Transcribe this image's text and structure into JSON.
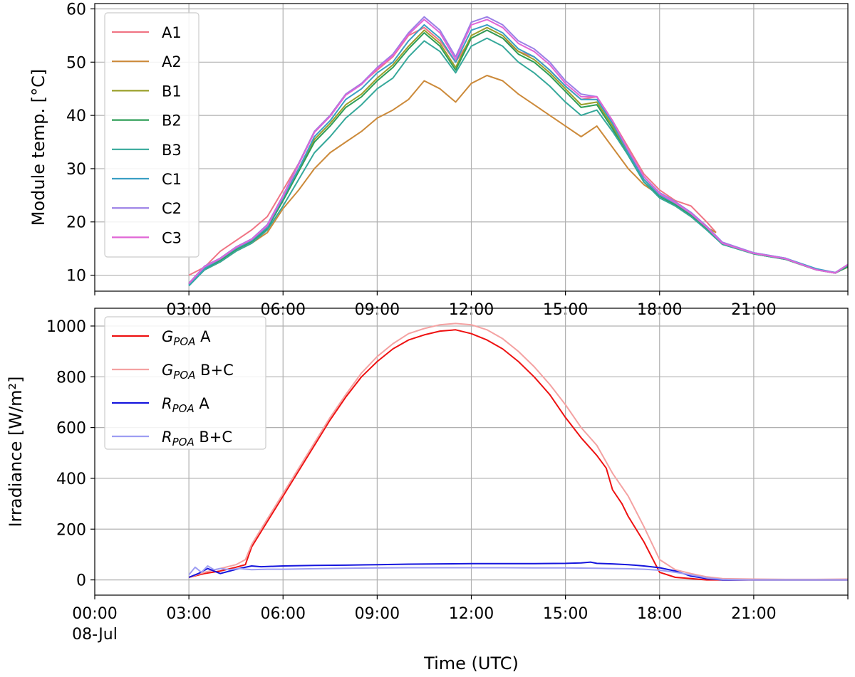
{
  "chart_data": [
    {
      "type": "line",
      "ylabel": "Module temp. [°C]",
      "ylim": [
        7,
        61
      ],
      "xlim": [
        0,
        24
      ],
      "x_ticks": [
        "",
        "03:00",
        "06:00",
        "09:00",
        "12:00",
        "15:00",
        "18:00",
        "21:00"
      ],
      "y_ticks": [
        "10",
        "20",
        "30",
        "40",
        "50",
        "60"
      ],
      "grid": true,
      "legend": "top-left",
      "series": [
        {
          "name": "A1",
          "color": "#f07585",
          "x": [
            3.0,
            3.5,
            4.0,
            4.5,
            5.0,
            5.5,
            6.0,
            6.5,
            7.0,
            7.5,
            8.0,
            8.5,
            9.0,
            9.5,
            10.0,
            10.5,
            11.0,
            11.5,
            12.0,
            12.5,
            13.0,
            13.5,
            14.0,
            14.5,
            15.0,
            15.5,
            16.0,
            16.5,
            17.0,
            17.5,
            18.0,
            18.5,
            19.0,
            19.5,
            19.8
          ],
          "y": [
            10,
            11.5,
            14.5,
            16.5,
            18.5,
            21,
            26,
            31,
            37,
            40,
            44,
            46,
            48.5,
            51,
            55,
            56.5,
            54,
            50,
            54.5,
            56,
            54.5,
            52,
            51,
            48.5,
            45.5,
            43,
            43.5,
            39,
            34,
            29,
            26,
            24,
            23,
            20,
            18
          ]
        },
        {
          "name": "A2",
          "color": "#cc8a3a",
          "x": [
            3.0,
            3.5,
            4.0,
            4.5,
            5.0,
            5.5,
            6.0,
            6.5,
            7.0,
            7.5,
            8.0,
            8.5,
            9.0,
            9.5,
            10.0,
            10.5,
            11.0,
            11.5,
            12.0,
            12.5,
            13.0,
            13.5,
            14.0,
            14.5,
            15.0,
            15.5,
            16.0,
            16.5,
            17.0,
            17.5,
            18.0,
            18.5,
            19.0,
            19.5,
            19.8
          ],
          "y": [
            8.5,
            11,
            12.5,
            14.5,
            16,
            18,
            22.5,
            26,
            30,
            33,
            35,
            37,
            39.5,
            41,
            43,
            46.5,
            45,
            42.5,
            46,
            47.5,
            46.5,
            44,
            42,
            40,
            38,
            36,
            38,
            34,
            30,
            27,
            25,
            23,
            21,
            19,
            18
          ]
        },
        {
          "name": "B1",
          "color": "#9a9f2a",
          "x": [
            3.0,
            3.5,
            4.0,
            4.5,
            5.0,
            5.5,
            6.0,
            6.5,
            7.0,
            7.5,
            8.0,
            8.5,
            9.0,
            9.5,
            10.0,
            10.5,
            11.0,
            11.5,
            12.0,
            12.5,
            13.0,
            13.5,
            14.0,
            14.5,
            15.0,
            15.5,
            16.0,
            16.5,
            17.0,
            17.5,
            18.0,
            18.5,
            19.0,
            19.5,
            20.0,
            21.0,
            22.0,
            23.0,
            23.6,
            24.0
          ],
          "y": [
            8.5,
            11.5,
            13,
            15,
            16.5,
            19,
            24.5,
            30,
            35.5,
            38.5,
            42,
            44,
            47,
            49.5,
            53,
            56,
            53.5,
            49,
            55,
            56.5,
            55,
            52,
            50.5,
            48,
            45,
            42,
            42.5,
            38,
            33,
            28,
            25,
            23.5,
            21.5,
            19,
            16,
            14,
            13,
            11,
            10.5,
            11.5
          ]
        },
        {
          "name": "B2",
          "color": "#2e9e57",
          "x": [
            3.0,
            3.5,
            4.0,
            4.5,
            5.0,
            5.5,
            6.0,
            6.5,
            7.0,
            7.5,
            8.0,
            8.5,
            9.0,
            9.5,
            10.0,
            10.5,
            11.0,
            11.5,
            12.0,
            12.5,
            13.0,
            13.5,
            14.0,
            14.5,
            15.0,
            15.5,
            16.0,
            16.5,
            17.0,
            17.5,
            18.0,
            18.5,
            19.0,
            19.5,
            20.0,
            21.0,
            22.0,
            23.0,
            23.6,
            24.0
          ],
          "y": [
            8.3,
            11.2,
            12.8,
            14.8,
            16.3,
            18.8,
            24,
            29.5,
            35,
            38,
            41.5,
            43.5,
            46.5,
            49,
            52.5,
            55.5,
            53,
            48.5,
            54.5,
            56,
            54.5,
            51.5,
            50,
            47.5,
            44.5,
            41.5,
            42,
            37.5,
            32.5,
            27.5,
            24.8,
            23.2,
            21.2,
            18.8,
            15.8,
            14,
            13,
            11,
            10.4,
            11.6
          ]
        },
        {
          "name": "B3",
          "color": "#35a89a",
          "x": [
            3.0,
            3.5,
            4.0,
            4.5,
            5.0,
            5.5,
            6.0,
            6.5,
            7.0,
            7.5,
            8.0,
            8.5,
            9.0,
            9.5,
            10.0,
            10.5,
            11.0,
            11.5,
            12.0,
            12.5,
            13.0,
            13.5,
            14.0,
            14.5,
            15.0,
            15.5,
            16.0,
            16.5,
            17.0,
            17.5,
            18.0,
            18.5,
            19.0,
            19.5,
            20.0,
            21.0,
            22.0,
            23.0,
            23.6,
            24.0
          ],
          "y": [
            8,
            11,
            12.5,
            14.5,
            16,
            18.5,
            23,
            28,
            33,
            36,
            39.5,
            42,
            45,
            47,
            51,
            54,
            52,
            48,
            53,
            54.5,
            53,
            50,
            48,
            45.5,
            42.5,
            40,
            41,
            37,
            32.5,
            27.5,
            24.5,
            23,
            21,
            18.5,
            15.8,
            14,
            13,
            11,
            10.4,
            11.8
          ]
        },
        {
          "name": "C1",
          "color": "#3a9fc4",
          "x": [
            3.0,
            3.5,
            4.0,
            4.5,
            5.0,
            5.5,
            6.0,
            6.5,
            7.0,
            7.5,
            8.0,
            8.5,
            9.0,
            9.5,
            10.0,
            10.5,
            11.0,
            11.5,
            12.0,
            12.5,
            13.0,
            13.5,
            14.0,
            14.5,
            15.0,
            15.5,
            16.0,
            16.5,
            17.0,
            17.5,
            18.0,
            18.5,
            19.0,
            19.5,
            20.0,
            21.0,
            22.0,
            23.0,
            23.6,
            24.0
          ],
          "y": [
            8.2,
            11.3,
            13,
            15,
            16.5,
            19,
            24.5,
            30,
            36,
            39,
            43,
            45,
            48,
            50,
            54,
            57,
            54.5,
            50,
            56,
            57,
            55.5,
            52.5,
            51,
            48.5,
            45.5,
            43,
            43,
            38.5,
            33,
            28,
            25,
            23.5,
            21.5,
            19,
            16,
            14.2,
            13.2,
            11.2,
            10.5,
            12
          ]
        },
        {
          "name": "C2",
          "color": "#9a7fe6",
          "x": [
            3.0,
            3.5,
            4.0,
            4.5,
            5.0,
            5.5,
            6.0,
            6.5,
            7.0,
            7.5,
            8.0,
            8.5,
            9.0,
            9.5,
            10.0,
            10.5,
            11.0,
            11.5,
            12.0,
            12.5,
            13.0,
            13.5,
            14.0,
            14.5,
            15.0,
            15.5,
            16.0,
            16.5,
            17.0,
            17.5,
            18.0,
            18.5,
            19.0,
            19.5,
            20.0,
            21.0,
            22.0,
            23.0,
            23.6,
            24.0
          ],
          "y": [
            8.5,
            11.7,
            13.2,
            15.3,
            16.8,
            19.5,
            25,
            31,
            37,
            40,
            44,
            46,
            49,
            51.5,
            55.5,
            58.5,
            56,
            51,
            57.5,
            58.5,
            57,
            54,
            52.5,
            50,
            46.5,
            44,
            43.5,
            39,
            33.5,
            28.5,
            25.5,
            23.8,
            21.8,
            19.2,
            16.2,
            14.2,
            13.2,
            11,
            10.5,
            12
          ]
        },
        {
          "name": "C3",
          "color": "#e066d6",
          "x": [
            3.0,
            3.5,
            4.0,
            4.5,
            5.0,
            5.5,
            6.0,
            6.5,
            7.0,
            7.5,
            8.0,
            8.5,
            9.0,
            9.5,
            10.0,
            10.5,
            11.0,
            11.5,
            12.0,
            12.5,
            13.0,
            13.5,
            14.0,
            14.5,
            15.0,
            15.5,
            16.0,
            16.5,
            17.0,
            17.5,
            18.0,
            18.5,
            19.0,
            19.5,
            20.0,
            21.0,
            22.0,
            23.0,
            23.6,
            24.0
          ],
          "y": [
            8.4,
            11.6,
            13.1,
            15.2,
            16.7,
            19.3,
            24.8,
            30.8,
            36.8,
            39.8,
            43.8,
            45.8,
            48.8,
            51.2,
            55.2,
            58,
            55.5,
            50.5,
            57,
            58,
            56.5,
            53.5,
            52,
            49.5,
            46,
            43.5,
            43.5,
            39,
            33.5,
            28.5,
            25.3,
            23.6,
            21.6,
            19,
            16,
            14.1,
            13.1,
            11,
            10.4,
            12
          ]
        }
      ]
    },
    {
      "type": "line",
      "xlabel": "Time (UTC)",
      "ylabel": "Irradiance [W/m²]",
      "ylim": [
        -60,
        1070
      ],
      "xlim": [
        0,
        24
      ],
      "x_ticks": [
        "00:00",
        "03:00",
        "06:00",
        "09:00",
        "12:00",
        "15:00",
        "18:00",
        "21:00"
      ],
      "x_tick_sub": "08-Jul",
      "y_ticks": [
        "0",
        "200",
        "400",
        "600",
        "800",
        "1000"
      ],
      "grid": true,
      "legend": "top-left",
      "series": [
        {
          "name_main": "G",
          "name_sub": "POA",
          "name_rest": " A",
          "color": "#ee1111",
          "x": [
            3.0,
            3.5,
            4.0,
            4.5,
            4.8,
            5.0,
            5.5,
            6.0,
            6.5,
            7.0,
            7.5,
            8.0,
            8.5,
            9.0,
            9.5,
            10.0,
            10.5,
            11.0,
            11.5,
            12.0,
            12.5,
            13.0,
            13.5,
            14.0,
            14.5,
            15.0,
            15.5,
            16.0,
            16.3,
            16.5,
            16.8,
            17.0,
            17.5,
            18.0,
            18.5,
            19.0,
            19.5,
            20.0,
            21.0,
            22.0,
            23.0,
            24.0
          ],
          "y": [
            10,
            25,
            35,
            50,
            60,
            130,
            230,
            330,
            430,
            530,
            630,
            720,
            800,
            860,
            910,
            945,
            965,
            980,
            985,
            970,
            945,
            910,
            860,
            800,
            730,
            640,
            560,
            490,
            440,
            355,
            300,
            250,
            150,
            30,
            10,
            5,
            0,
            0,
            0,
            0,
            0,
            0
          ]
        },
        {
          "name_main": "G",
          "name_sub": "POA",
          "name_rest": " B+C",
          "color": "#f4a2a2",
          "x": [
            3.0,
            3.5,
            4.0,
            4.5,
            4.8,
            5.0,
            5.5,
            6.0,
            6.5,
            7.0,
            7.5,
            8.0,
            8.5,
            9.0,
            9.5,
            10.0,
            10.5,
            11.0,
            11.5,
            12.0,
            12.5,
            13.0,
            13.5,
            14.0,
            14.5,
            15.0,
            15.5,
            16.0,
            16.5,
            17.0,
            17.5,
            18.0,
            18.5,
            19.0,
            19.5,
            20.0,
            21.0,
            22.0,
            23.0,
            24.0
          ],
          "y": [
            10,
            30,
            45,
            60,
            80,
            140,
            240,
            340,
            440,
            540,
            640,
            730,
            815,
            880,
            930,
            970,
            990,
            1005,
            1010,
            1005,
            985,
            950,
            900,
            840,
            770,
            690,
            600,
            530,
            420,
            330,
            210,
            80,
            40,
            25,
            12,
            5,
            3,
            2,
            2,
            3
          ]
        },
        {
          "name_main": "R",
          "name_sub": "POA",
          "name_rest": " A",
          "color": "#1515dd",
          "x": [
            3.0,
            3.3,
            3.6,
            4.0,
            4.3,
            4.6,
            5.0,
            5.3,
            6.0,
            7.0,
            8.0,
            9.0,
            10.0,
            11.0,
            12.0,
            13.0,
            14.0,
            15.0,
            15.5,
            15.8,
            16.0,
            16.5,
            17.0,
            17.5,
            18.0,
            18.5,
            19.0,
            19.5,
            20.0,
            21.0,
            22.0,
            23.0,
            24.0
          ],
          "y": [
            10,
            25,
            45,
            25,
            35,
            45,
            55,
            52,
            55,
            57,
            58,
            60,
            62,
            63,
            64,
            64,
            64,
            65,
            67,
            70,
            65,
            63,
            60,
            55,
            48,
            35,
            15,
            5,
            0,
            0,
            0,
            0,
            0
          ]
        },
        {
          "name_main": "R",
          "name_sub": "POA",
          "name_rest": " B+C",
          "color": "#9d9df2",
          "x": [
            3.0,
            3.2,
            3.4,
            3.6,
            3.8,
            4.0,
            4.3,
            4.6,
            5.0,
            5.5,
            6.0,
            7.0,
            8.0,
            9.0,
            10.0,
            11.0,
            12.0,
            13.0,
            14.0,
            15.0,
            16.0,
            16.5,
            17.0,
            17.5,
            18.0,
            18.5,
            19.0,
            19.5,
            20.0,
            21.0,
            22.0,
            23.0,
            24.0
          ],
          "y": [
            20,
            50,
            30,
            55,
            40,
            45,
            40,
            45,
            40,
            42,
            42,
            44,
            46,
            47,
            48,
            48,
            48,
            48,
            47,
            47,
            46,
            45,
            44,
            42,
            38,
            30,
            20,
            8,
            2,
            0,
            0,
            0,
            0
          ]
        }
      ]
    }
  ]
}
